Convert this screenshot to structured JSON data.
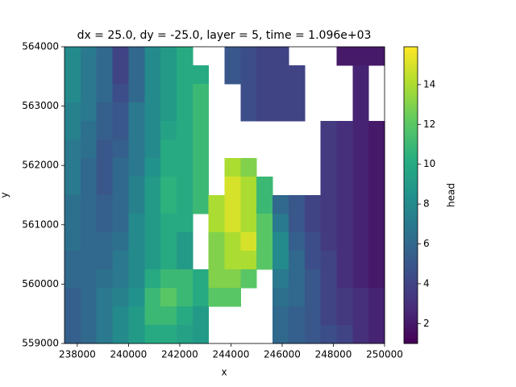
{
  "chart_data": {
    "type": "heatmap",
    "title": "dx = 25.0, dy = -25.0, layer = 5, time = 1.096e+03",
    "xlabel": "x",
    "ylabel": "y",
    "colorbar_label": "head",
    "colormap": "viridis",
    "x": [
      237812.5,
      238437.5,
      239062.5,
      239687.5,
      240312.5,
      240937.5,
      241562.5,
      242187.5,
      242812.5,
      243437.5,
      244062.5,
      244687.5,
      245312.5,
      245937.5,
      246562.5,
      247187.5,
      247812.5,
      248437.5,
      249062.5,
      249687.5
    ],
    "y": [
      563843.75,
      563531.25,
      563218.75,
      562906.25,
      562593.75,
      562281.25,
      561968.75,
      561656.25,
      561343.75,
      561031.25,
      560718.75,
      560406.25,
      560093.75,
      559781.25,
      559468.75,
      559156.25
    ],
    "values": [
      [
        8,
        7,
        6,
        4,
        6,
        8,
        9,
        10,
        null,
        null,
        5,
        4.5,
        4,
        4,
        null,
        null,
        null,
        2,
        2,
        2
      ],
      [
        8,
        7,
        6,
        4,
        6,
        8,
        9,
        10,
        10,
        null,
        5,
        4.5,
        4,
        4,
        4,
        null,
        null,
        null,
        2.5,
        null
      ],
      [
        8,
        7,
        6,
        4.5,
        6,
        8,
        9,
        10,
        11,
        null,
        null,
        4.5,
        4,
        4,
        4,
        null,
        null,
        null,
        2.5,
        null
      ],
      [
        7.5,
        7,
        5.5,
        5,
        7,
        8,
        9,
        10,
        11,
        null,
        null,
        4.5,
        4,
        4,
        4,
        null,
        null,
        null,
        2.5,
        null
      ],
      [
        7.5,
        6.5,
        5.5,
        5,
        7,
        8,
        9.5,
        10,
        11,
        null,
        null,
        null,
        null,
        null,
        null,
        null,
        3.5,
        3,
        2.5,
        2
      ],
      [
        7,
        6.5,
        5,
        5.5,
        7,
        8,
        10,
        10,
        11,
        null,
        null,
        null,
        null,
        null,
        null,
        null,
        3.5,
        3,
        2.5,
        2
      ],
      [
        7,
        6,
        5,
        6,
        7,
        8.5,
        10,
        10,
        11,
        null,
        14,
        13,
        null,
        null,
        null,
        null,
        3.5,
        3,
        2.5,
        2
      ],
      [
        7,
        6,
        5,
        6,
        7.5,
        9,
        10.5,
        10,
        11,
        null,
        15,
        14,
        11,
        null,
        null,
        null,
        3.5,
        3,
        2.5,
        2
      ],
      [
        6.5,
        6,
        5.5,
        6,
        7.5,
        9,
        10.5,
        10,
        11,
        14,
        15,
        14,
        11,
        6,
        5,
        4,
        3.5,
        3,
        2.5,
        2
      ],
      [
        6.5,
        6,
        5.5,
        6,
        8,
        9,
        10,
        10,
        null,
        14,
        15,
        14,
        12,
        7,
        5,
        4,
        3.5,
        3,
        2.5,
        2
      ],
      [
        6.5,
        6,
        6,
        6.5,
        8,
        9,
        10,
        9,
        null,
        13,
        14,
        15,
        12,
        8,
        5.5,
        4.5,
        3.5,
        3,
        2.5,
        2
      ],
      [
        6,
        6,
        6,
        7,
        8,
        9,
        10,
        9,
        null,
        13,
        14,
        14,
        12,
        8,
        6,
        4.5,
        4,
        3,
        2.5,
        2
      ],
      [
        6,
        6,
        6.5,
        7,
        8,
        10,
        11,
        11,
        10,
        13,
        13,
        12,
        null,
        7,
        6,
        5,
        4,
        3,
        2.5,
        2
      ],
      [
        5.5,
        6,
        7,
        7.5,
        8.5,
        11,
        12,
        11,
        10,
        12,
        12,
        null,
        null,
        6.5,
        6,
        5,
        4,
        3.5,
        3,
        2.5
      ],
      [
        5.5,
        6,
        7,
        8,
        9,
        11,
        11,
        10,
        9,
        null,
        null,
        null,
        null,
        6,
        5.5,
        5,
        4,
        3.5,
        3,
        2.5
      ],
      [
        5.5,
        6,
        7,
        8,
        9,
        10,
        10,
        9.5,
        9,
        null,
        null,
        null,
        null,
        6,
        5.5,
        5,
        4.5,
        4,
        3,
        2.5
      ]
    ],
    "xlim": [
      237500,
      250000
    ],
    "xticks": [
      238000,
      240000,
      242000,
      244000,
      246000,
      248000,
      250000
    ],
    "ylim": [
      559000,
      564000
    ],
    "yticks": [
      559000,
      560000,
      561000,
      562000,
      563000,
      564000
    ],
    "clim": [
      1,
      15.9
    ],
    "cticks": [
      2,
      4,
      6,
      8,
      10,
      12,
      14
    ]
  }
}
